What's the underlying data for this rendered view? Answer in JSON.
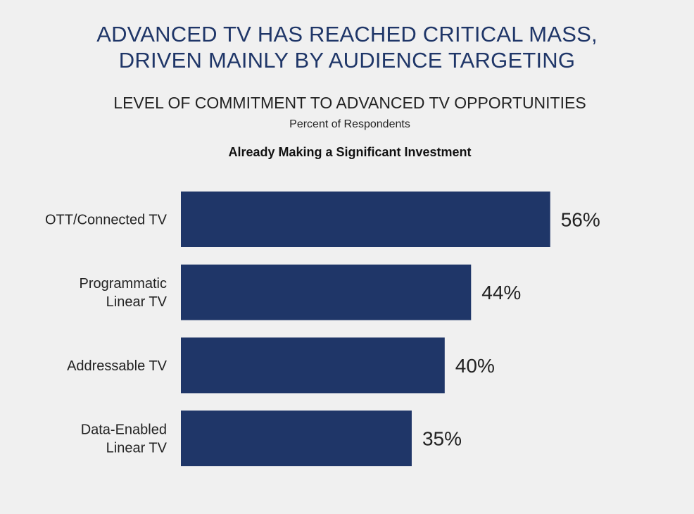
{
  "title_lines": [
    "ADVANCED TV HAS REACHED CRITICAL MASS,",
    "DRIVEN MAINLY BY AUDIENCE TARGETING"
  ],
  "subtitle": "LEVEL OF COMMITMENT TO ADVANCED TV OPPORTUNITIES",
  "unit_label": "Percent of Respondents",
  "group_label": "Already Making a Significant Investment",
  "colors": {
    "bar": "#1f3668",
    "background": "#f0f0f0",
    "title": "#1f3668",
    "text": "#222222"
  },
  "chart_data": {
    "type": "bar",
    "orientation": "horizontal",
    "title": "LEVEL OF COMMITMENT TO ADVANCED TV OPPORTUNITIES",
    "subtitle": "Percent of Respondents",
    "categories": [
      [
        "OTT/Connected TV"
      ],
      [
        "Programmatic",
        "Linear TV"
      ],
      [
        "Addressable TV"
      ],
      [
        "Data-Enabled",
        "Linear TV"
      ]
    ],
    "series": [
      {
        "name": "Already Making a Significant Investment",
        "values": [
          56,
          44,
          40,
          35
        ],
        "value_labels": [
          "56%",
          "44%",
          "40%",
          "35%"
        ]
      }
    ],
    "xlim": [
      0,
      100
    ],
    "grid": false,
    "legend": "none"
  }
}
